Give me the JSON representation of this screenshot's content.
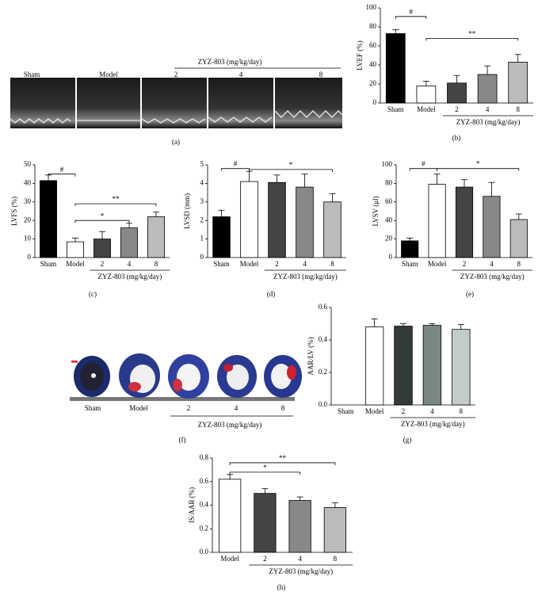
{
  "figure_a": {
    "panel": "(a)",
    "labels": [
      "Sham",
      "Model"
    ],
    "group": "ZYZ-803 (mg/kg/day)",
    "doses": [
      "2",
      "4",
      "8"
    ]
  },
  "figure_f": {
    "panel": "(f)",
    "labels": [
      "Sham",
      "Model"
    ],
    "group": "ZYZ-803 (mg/kg/day)",
    "doses": [
      "2",
      "4",
      "8"
    ]
  },
  "chart_data": [
    {
      "type": "bar",
      "panel": "(b)",
      "ylabel": "LVEF (%)",
      "group": "ZYZ-803 (mg/kg/day)",
      "categories": [
        "Sham",
        "Model",
        "2",
        "4",
        "8"
      ],
      "values": [
        73,
        18,
        21,
        30,
        43
      ],
      "errors": [
        4,
        5,
        8,
        9,
        8
      ],
      "colors": [
        "#000000",
        "#ffffff",
        "#444444",
        "#888888",
        "#bbbbbb"
      ],
      "ylim": [
        0,
        100
      ],
      "yticks": [
        0,
        20,
        40,
        60,
        80,
        100
      ],
      "annotations": [
        {
          "text": "#",
          "from": "Sham",
          "to": "Model",
          "y": 91
        },
        {
          "text": "**",
          "from": "Model",
          "to": "8",
          "y": 68
        }
      ]
    },
    {
      "type": "bar",
      "panel": "(c)",
      "ylabel": "LVFS (%)",
      "group": "ZYZ-803 (mg/kg/day)",
      "categories": [
        "Sham",
        "Model",
        "2",
        "4",
        "8"
      ],
      "values": [
        41.5,
        8.5,
        10,
        16,
        22
      ],
      "errors": [
        3,
        2,
        4,
        2.5,
        2.5
      ],
      "colors": [
        "#000000",
        "#ffffff",
        "#444444",
        "#888888",
        "#bbbbbb"
      ],
      "ylim": [
        0,
        50
      ],
      "yticks": [
        0,
        10,
        20,
        30,
        40,
        50
      ],
      "annotations": [
        {
          "text": "#",
          "from": "Sham",
          "to": "Model",
          "y": 45
        },
        {
          "text": "**",
          "from": "Model",
          "to": "8",
          "y": 29
        },
        {
          "text": "*",
          "from": "Model",
          "to": "4",
          "y": 20
        }
      ]
    },
    {
      "type": "bar",
      "panel": "(d)",
      "ylabel": "LVSD (mm)",
      "group": "ZYZ-803 (mg/kg/day)",
      "categories": [
        "Sham",
        "Model",
        "2",
        "4",
        "8"
      ],
      "values": [
        2.2,
        4.1,
        4.05,
        3.8,
        3.0
      ],
      "errors": [
        0.35,
        0.55,
        0.4,
        0.7,
        0.45
      ],
      "colors": [
        "#000000",
        "#ffffff",
        "#444444",
        "#888888",
        "#bbbbbb"
      ],
      "ylim": [
        0,
        5
      ],
      "yticks": [
        0,
        1,
        2,
        3,
        4,
        5
      ],
      "annotations": [
        {
          "text": "#",
          "from": "Sham",
          "to": "Model",
          "y": 4.8
        },
        {
          "text": "*",
          "from": "Model",
          "to": "8",
          "y": 4.75
        }
      ]
    },
    {
      "type": "bar",
      "panel": "(e)",
      "ylabel": "LVSV (μl)",
      "group": "ZYZ-803 (mg/kg/day)",
      "categories": [
        "Sham",
        "Model",
        "2",
        "4",
        "8"
      ],
      "values": [
        18,
        79,
        76,
        66,
        41
      ],
      "errors": [
        3,
        11,
        8,
        15,
        6
      ],
      "colors": [
        "#000000",
        "#ffffff",
        "#444444",
        "#888888",
        "#bbbbbb"
      ],
      "ylim": [
        0,
        100
      ],
      "yticks": [
        0,
        20,
        40,
        60,
        80,
        100
      ],
      "annotations": [
        {
          "text": "#",
          "from": "Sham",
          "to": "Model",
          "y": 96
        },
        {
          "text": "*",
          "from": "Model",
          "to": "8",
          "y": 96
        }
      ]
    },
    {
      "type": "bar",
      "panel": "(g)",
      "ylabel": "AAR/LV (%)",
      "group": "ZYZ-803 (mg/kg/day)",
      "categories": [
        "Sham",
        "Model",
        "2",
        "4",
        "8"
      ],
      "values": [
        null,
        0.48,
        0.485,
        0.49,
        0.465
      ],
      "errors": [
        null,
        0.05,
        0.015,
        0.01,
        0.03
      ],
      "colors": [
        "#ffffff",
        "#ffffff",
        "#333a3a",
        "#7a8784",
        "#c2ccca"
      ],
      "ylim": [
        0,
        0.6
      ],
      "yticks": [
        {
          "value": 0,
          "label": "0.0"
        },
        0.2,
        0.4,
        0.6
      ],
      "annotations": []
    },
    {
      "type": "bar",
      "panel": "(h)",
      "ylabel": "IS/AAR (%)",
      "group": "ZYZ-803 (mg/kg/day)",
      "categories": [
        "Model",
        "2",
        "4",
        "8"
      ],
      "values": [
        0.62,
        0.5,
        0.44,
        0.38
      ],
      "errors": [
        0.04,
        0.04,
        0.03,
        0.04
      ],
      "colors": [
        "#ffffff",
        "#444444",
        "#888888",
        "#bbbbbb"
      ],
      "ylim": [
        0,
        0.8
      ],
      "yticks": [
        {
          "value": 0,
          "label": "0.0"
        },
        0.2,
        0.4,
        0.6,
        0.8
      ],
      "annotations": [
        {
          "text": "**",
          "from": "Model",
          "to": "8",
          "y": 0.76
        },
        {
          "text": "*",
          "from": "Model",
          "to": "4",
          "y": 0.68
        }
      ]
    }
  ]
}
